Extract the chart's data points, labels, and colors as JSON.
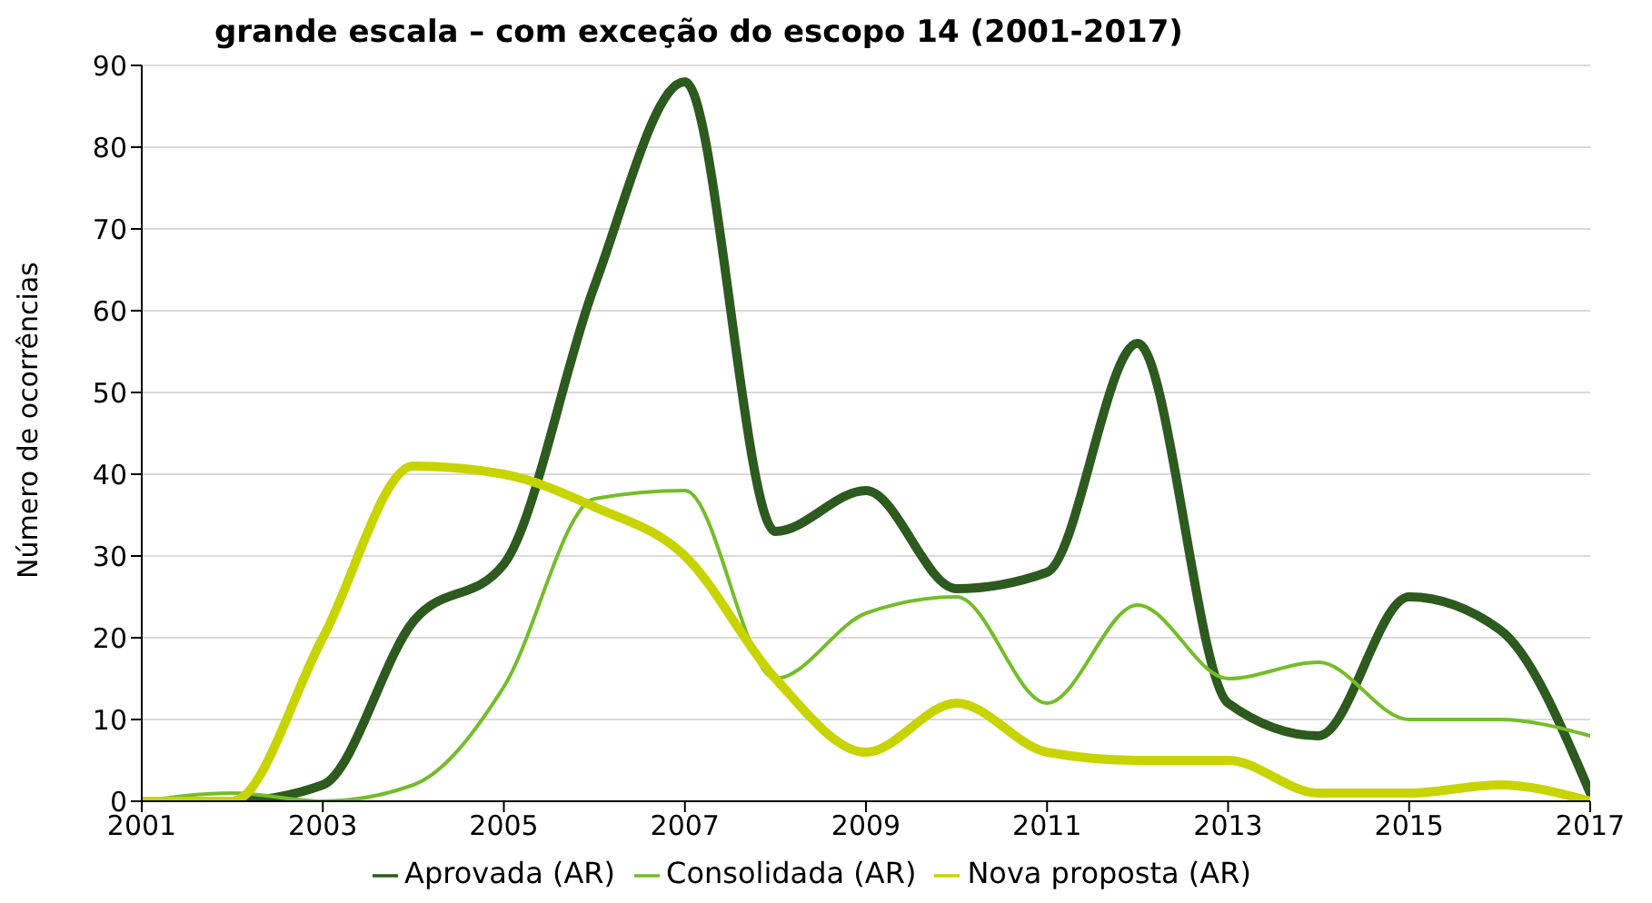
{
  "chart_data": {
    "type": "line",
    "title": "grande escala – com exceção do escopo 14 (2001-2017)",
    "ylabel": "Número de ocorrências",
    "x": [
      2001,
      2002,
      2003,
      2004,
      2005,
      2006,
      2007,
      2008,
      2009,
      2010,
      2011,
      2012,
      2013,
      2014,
      2015,
      2016,
      2017
    ],
    "xlim": [
      2001,
      2017
    ],
    "xticks": [
      2001,
      2003,
      2005,
      2007,
      2009,
      2011,
      2013,
      2015,
      2017
    ],
    "ylim": [
      0,
      90
    ],
    "yticks": [
      0,
      10,
      20,
      30,
      40,
      50,
      60,
      70,
      80,
      90
    ],
    "grid": "y",
    "legend": "bottom",
    "marker": "none",
    "line_style": "solid",
    "series": [
      {
        "name": "Aprovada (AR)",
        "color": "#2d5a1e",
        "values": [
          0,
          0,
          2,
          22,
          29,
          63,
          88,
          33,
          38,
          26,
          28,
          56,
          12,
          8,
          25,
          21,
          1
        ]
      },
      {
        "name": "Consolidada (AR)",
        "color": "#74bd2a",
        "values": [
          0,
          1,
          0,
          2,
          14,
          37,
          38,
          15,
          23,
          25,
          12,
          24,
          15,
          17,
          10,
          10,
          8
        ]
      },
      {
        "name": "Nova proposta (AR)",
        "color": "#c8d400",
        "values": [
          0,
          0,
          20,
          41,
          40,
          36,
          30,
          15,
          6,
          12,
          6,
          5,
          5,
          1,
          1,
          2,
          0
        ]
      }
    ]
  }
}
